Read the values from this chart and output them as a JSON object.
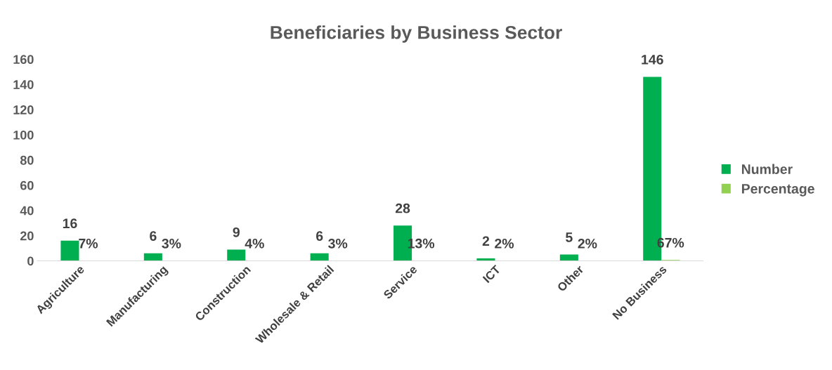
{
  "chart_data": {
    "type": "bar",
    "title": "Beneficiaries by Business Sector",
    "categories": [
      "Agriculture",
      "Manufacturing",
      "Construction",
      "Wholesale & Retail",
      "Service",
      "ICT",
      "Other",
      "No Business"
    ],
    "series": [
      {
        "name": "Number",
        "color": "#00b050",
        "values": [
          16,
          6,
          9,
          6,
          28,
          2,
          5,
          146
        ],
        "value_labels": [
          "16",
          "6",
          "9",
          "6",
          "28",
          "2",
          "5",
          "146"
        ]
      },
      {
        "name": "Percentage",
        "color": "#92d050",
        "values": [
          0.07,
          0.03,
          0.04,
          0.03,
          0.13,
          0.02,
          0.02,
          0.67
        ],
        "value_labels": [
          "7%",
          "3%",
          "4%",
          "3%",
          "13%",
          "2%",
          "2%",
          "67%"
        ]
      }
    ],
    "ylim": [
      0,
      160
    ],
    "yticks": [
      0,
      20,
      40,
      60,
      80,
      100,
      120,
      140,
      160
    ],
    "grid": false,
    "legend": "right"
  }
}
